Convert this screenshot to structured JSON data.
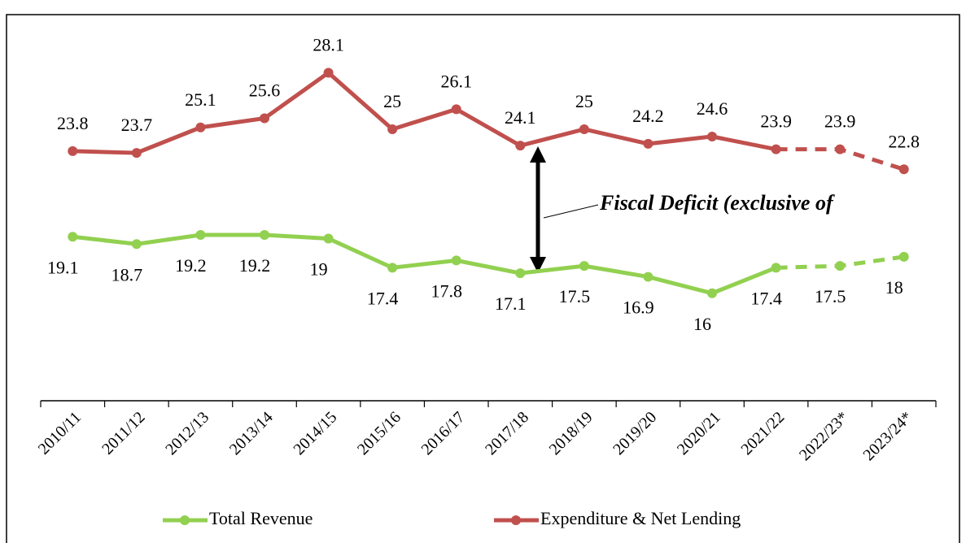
{
  "chart_data": {
    "type": "line",
    "annotation": "Fiscal Deficit (exclusive of",
    "categories": [
      "2010/11",
      "2011/12",
      "2012/13",
      "2013/14",
      "2014/15",
      "2015/16",
      "2016/17",
      "2017/18",
      "2018/19",
      "2019/20",
      "2020/21",
      "2021/22",
      "2022/23*",
      "2023/24*"
    ],
    "series": [
      {
        "name": "Total Revenue",
        "color": "#92d050",
        "values": [
          19.1,
          18.7,
          19.2,
          19.2,
          19.0,
          17.4,
          17.8,
          17.1,
          17.5,
          16.9,
          16.0,
          17.4,
          17.5,
          18.0
        ]
      },
      {
        "name": "Expenditure & Net Lending",
        "color": "#c0504d",
        "values": [
          23.8,
          23.7,
          25.1,
          25.6,
          28.1,
          25.0,
          26.1,
          24.1,
          25.0,
          24.2,
          24.6,
          23.9,
          23.9,
          22.8
        ]
      }
    ],
    "dashed_from_index": 11,
    "ylim": [
      10.1,
      31.2
    ],
    "legend": "bottom"
  }
}
